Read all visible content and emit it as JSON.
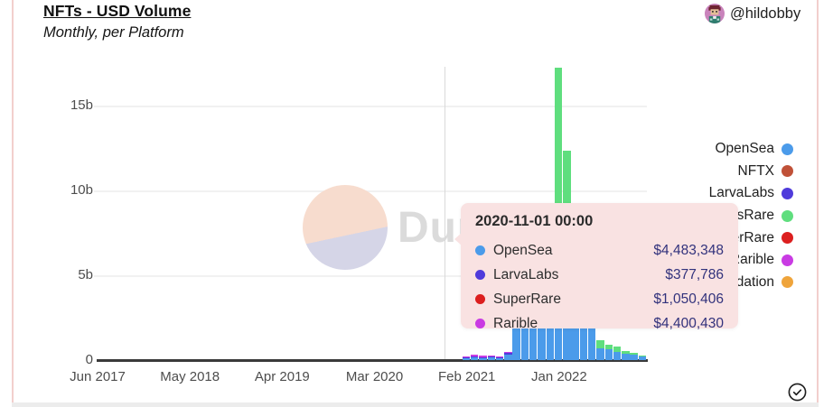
{
  "header": {
    "title": "NFTs - USD Volume",
    "subtitle": "Monthly, per Platform",
    "account_handle": "@hildobby"
  },
  "colors": {
    "opensea": "#4B9BEA",
    "nftx": "#C05138",
    "larvalabs": "#4F3BDB",
    "looksrare": "#5FDE7E",
    "superrare": "#DC1F1F",
    "rarible": "#C93BE3",
    "foundation": "#EFA43B",
    "tooltip_bg": "#F9E2E2",
    "tooltip_value_text": "#32327C",
    "watermark_peach": "#F7DCCE",
    "watermark_lavender": "#D5D5E7",
    "edge_line_pink": "#F2CFCD"
  },
  "legend": {
    "items": [
      {
        "label": "OpenSea",
        "key": "opensea"
      },
      {
        "label": "NFTX",
        "key": "nftx"
      },
      {
        "label": "LarvaLabs",
        "key": "larvalabs"
      },
      {
        "label": "LooksRare",
        "key": "looksrare"
      },
      {
        "label": "SuperRare",
        "key": "superrare"
      },
      {
        "label": "Rarible",
        "key": "rarible"
      },
      {
        "label": "Foundation",
        "key": "foundation"
      }
    ]
  },
  "tooltip": {
    "timestamp": "2020-11-01 00:00",
    "rows": [
      {
        "label": "OpenSea",
        "key": "opensea",
        "value": "$4,483,348"
      },
      {
        "label": "LarvaLabs",
        "key": "larvalabs",
        "value": "$377,786"
      },
      {
        "label": "SuperRare",
        "key": "superrare",
        "value": "$1,050,406"
      },
      {
        "label": "Rarible",
        "key": "rarible",
        "value": "$4,400,430"
      }
    ]
  },
  "watermark": {
    "text": "Dune"
  },
  "chart_data": {
    "type": "bar",
    "stacked": true,
    "title": "NFTs - USD Volume",
    "subtitle": "Monthly, per Platform",
    "unit": "USD billions per month",
    "grid": "horizontal",
    "legend_position": "right",
    "ylim": [
      0,
      17.5
    ],
    "y_ticks": [
      {
        "label": "0",
        "value": 0
      },
      {
        "label": "5b",
        "value": 5
      },
      {
        "label": "10b",
        "value": 10
      },
      {
        "label": "15b",
        "value": 15
      }
    ],
    "x_ticks": [
      {
        "label": "Jun 2017",
        "month": "2017-06"
      },
      {
        "label": "May 2018",
        "month": "2018-05"
      },
      {
        "label": "Apr 2019",
        "month": "2019-04"
      },
      {
        "label": "Mar 2020",
        "month": "2020-03"
      },
      {
        "label": "Feb 2021",
        "month": "2021-02"
      },
      {
        "label": "Jan 2022",
        "month": "2022-01"
      }
    ],
    "crosshair_month": "2020-11",
    "categories": [
      "2021-02",
      "2021-03",
      "2021-04",
      "2021-05",
      "2021-06",
      "2021-07",
      "2021-08",
      "2021-09",
      "2021-10",
      "2021-11",
      "2021-12",
      "2022-01",
      "2022-02",
      "2022-03",
      "2022-04",
      "2022-05",
      "2022-06",
      "2022-07",
      "2022-08",
      "2022-09",
      "2022-10",
      "2022-11"
    ],
    "series": [
      {
        "name": "OpenSea",
        "key": "opensea",
        "values": [
          0.1,
          0.15,
          0.13,
          0.14,
          0.12,
          0.33,
          3.43,
          3.0,
          2.64,
          2.37,
          2.36,
          4.95,
          3.75,
          2.5,
          3.48,
          2.57,
          0.7,
          0.65,
          0.5,
          0.35,
          0.33,
          0.22
        ]
      },
      {
        "name": "LarvaLabs",
        "key": "larvalabs",
        "values": [
          0.05,
          0.07,
          0.05,
          0.06,
          0.04,
          0.08,
          0,
          0,
          0,
          0,
          0,
          0,
          0,
          0,
          0,
          0,
          0,
          0,
          0,
          0,
          0,
          0
        ]
      },
      {
        "name": "LooksRare",
        "key": "looksrare",
        "values": [
          0,
          0,
          0,
          0,
          0,
          0,
          0,
          0,
          0,
          0,
          0,
          12.25,
          8.55,
          1.3,
          0.55,
          0.45,
          0.45,
          0.25,
          0.3,
          0.2,
          0.1,
          0.06
        ]
      },
      {
        "name": "Rarible",
        "key": "rarible",
        "values": [
          0.06,
          0.1,
          0.08,
          0.06,
          0.05,
          0.06,
          0,
          0,
          0,
          0,
          0,
          0,
          0,
          0,
          0,
          0,
          0,
          0,
          0,
          0,
          0,
          0
        ]
      }
    ]
  }
}
